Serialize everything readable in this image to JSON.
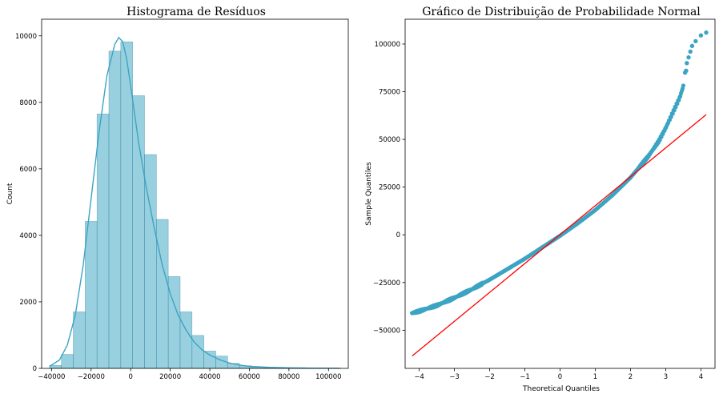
{
  "chart_data": [
    {
      "type": "histogram",
      "title": "Histograma de Resíduos",
      "xlabel": "",
      "ylabel": "Count",
      "xlim": [
        -45000,
        110000
      ],
      "ylim": [
        0,
        10500
      ],
      "x_ticks": [
        -40000,
        -20000,
        0,
        20000,
        40000,
        60000,
        80000,
        100000
      ],
      "x_tick_labels": [
        "−40000",
        "−20000",
        "0",
        "20000",
        "40000",
        "60000",
        "80000",
        "100000"
      ],
      "y_ticks": [
        0,
        2000,
        4000,
        6000,
        8000,
        10000
      ],
      "y_tick_labels": [
        "0",
        "2000",
        "4000",
        "6000",
        "8000",
        "10000"
      ],
      "bin_start": -41000,
      "bin_width": 6000,
      "counts": [
        90,
        420,
        1700,
        4420,
        7650,
        9540,
        9820,
        8200,
        6430,
        4480,
        2760,
        1700,
        990,
        520,
        370,
        150,
        80,
        35,
        15,
        8,
        5,
        3,
        2,
        1
      ],
      "kde": {
        "x": [
          -41000,
          -36000,
          -32000,
          -28000,
          -24000,
          -20000,
          -16000,
          -12000,
          -8000,
          -6000,
          -4000,
          -2000,
          0,
          2000,
          4000,
          8000,
          12000,
          16000,
          20000,
          24000,
          28000,
          32000,
          36000,
          40000,
          45000,
          50000,
          55000,
          60000,
          70000,
          80000,
          90000,
          100000,
          106000
        ],
        "y": [
          60,
          250,
          700,
          1600,
          3100,
          5100,
          7100,
          8800,
          9750,
          9950,
          9820,
          9300,
          8500,
          7650,
          6800,
          5400,
          4200,
          3100,
          2250,
          1600,
          1150,
          800,
          560,
          400,
          260,
          160,
          100,
          60,
          30,
          15,
          8,
          4,
          2
        ]
      },
      "color": "#3ca4c3"
    },
    {
      "type": "scatter",
      "title": "Gráfico de Distribuição de Probabilidade Normal",
      "xlabel": "Theoretical Quantiles",
      "ylabel": "Sample Quantiles",
      "xlim": [
        -4.4,
        4.4
      ],
      "ylim": [
        -70000,
        113000
      ],
      "x_ticks": [
        -4,
        -3,
        -2,
        -1,
        0,
        1,
        2,
        3,
        4
      ],
      "x_tick_labels": [
        "−4",
        "−3",
        "−2",
        "−1",
        "0",
        "1",
        "2",
        "3",
        "4"
      ],
      "y_ticks": [
        -50000,
        -25000,
        0,
        25000,
        50000,
        75000,
        100000
      ],
      "y_tick_labels": [
        "−50000",
        "−25000",
        "0",
        "25000",
        "50000",
        "75000",
        "100000"
      ],
      "qq_curve": {
        "x": [
          -4.2,
          -4.0,
          -3.5,
          -3.0,
          -2.5,
          -2.0,
          -1.5,
          -1.0,
          -0.5,
          0,
          0.5,
          1.0,
          1.5,
          2.0,
          2.5,
          2.8,
          3.0,
          3.2,
          3.4,
          3.5
        ],
        "y": [
          -41000,
          -40000,
          -37000,
          -33000,
          -28500,
          -23500,
          -18000,
          -12500,
          -6500,
          -500,
          6000,
          13000,
          21000,
          30000,
          41000,
          49000,
          56000,
          64000,
          72000,
          78000
        ]
      },
      "qq_tail_points": [
        {
          "x": -4.2,
          "y": -41000
        },
        {
          "x": -4.05,
          "y": -40000
        },
        {
          "x": -3.9,
          "y": -39500
        },
        {
          "x": 3.55,
          "y": 85000
        },
        {
          "x": 3.58,
          "y": 86000
        },
        {
          "x": 3.6,
          "y": 90000
        },
        {
          "x": 3.65,
          "y": 93000
        },
        {
          "x": 3.7,
          "y": 96000
        },
        {
          "x": 3.75,
          "y": 99000
        },
        {
          "x": 3.85,
          "y": 101500
        },
        {
          "x": 4.0,
          "y": 104500
        },
        {
          "x": 4.15,
          "y": 106000
        }
      ],
      "reference_line": {
        "x": [
          -4.2,
          4.15
        ],
        "y": [
          -63500,
          63000
        ],
        "color": "#ff0000"
      },
      "color": "#3ca4c3"
    }
  ]
}
